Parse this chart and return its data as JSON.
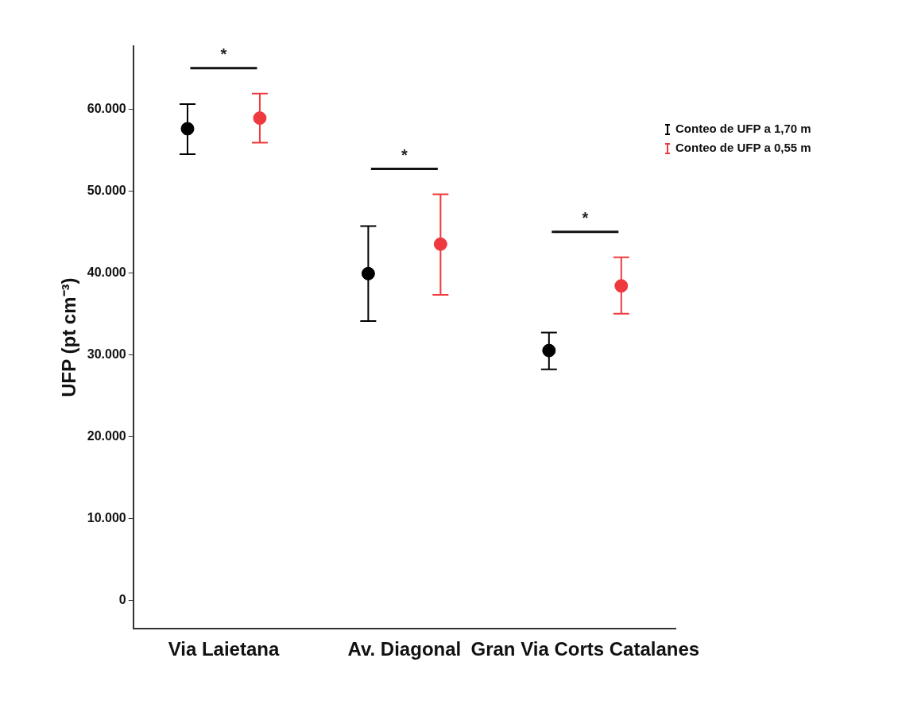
{
  "chart_data": {
    "type": "scatter",
    "ylabel": "UFP (pt cm⁻³)",
    "categories": [
      "Via Laietana",
      "Av. Diagonal",
      "Gran Via Corts Catalanes"
    ],
    "series": [
      {
        "name": "Conteo de UFP a 1,70 m",
        "color": "#000000",
        "values": [
          57600,
          39900,
          30500
        ],
        "errors": [
          [
            54500,
            60600
          ],
          [
            34100,
            45700
          ],
          [
            28200,
            32700
          ]
        ]
      },
      {
        "name": "Conteo de UFP a 0,55 m",
        "color": "#ee3a3e",
        "values": [
          58900,
          43500,
          38400
        ],
        "errors": [
          [
            55900,
            61900
          ],
          [
            37300,
            49600
          ],
          [
            35000,
            41900
          ]
        ]
      }
    ],
    "ylim": [
      -3500,
      67700
    ],
    "yticks": [
      {
        "value": 0,
        "label": "0"
      },
      {
        "value": 10000,
        "label": "10.000"
      },
      {
        "value": 20000,
        "label": "20.000"
      },
      {
        "value": 30000,
        "label": "30.000"
      },
      {
        "value": 40000,
        "label": "40.000"
      },
      {
        "value": 50000,
        "label": "50.000"
      },
      {
        "value": 60000,
        "label": "60.000"
      }
    ],
    "annotations": [
      "*",
      "*",
      "*"
    ],
    "legend": "right",
    "grid": false,
    "marker": "circle"
  }
}
